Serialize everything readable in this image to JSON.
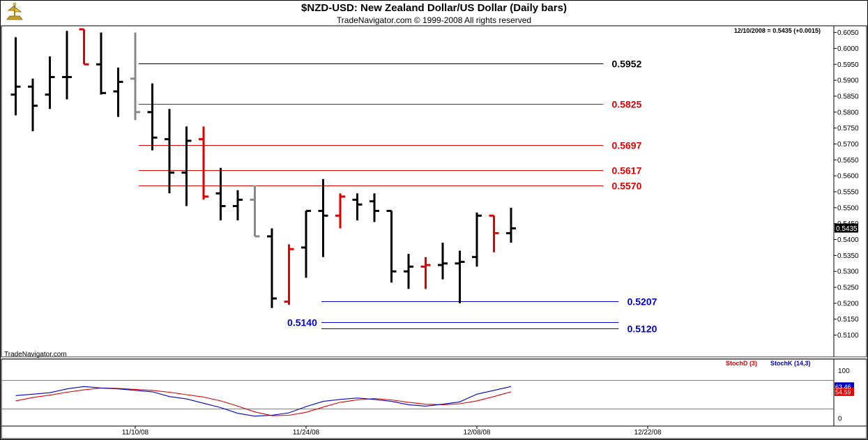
{
  "header": {
    "title": "$NZD-USD:  New Zealand Dollar/US Dollar  (Daily bars)",
    "subtitle": "TradeNavigator.com © 1999-2008 All rights reserved",
    "last_info": "12/10/2008 = 0.5435 (+0.0015)",
    "watermark": "TradeNavigator.com"
  },
  "colors": {
    "up": "#000000",
    "down": "#e00000",
    "neutral": "#888888",
    "resistance": "#e00000",
    "support": "#0000cc",
    "stochD": "#e00000",
    "stochK": "#0000cc"
  },
  "chart_data": [
    {
      "type": "ohlc",
      "title": "$NZD-USD:  New Zealand Dollar/US Dollar  (Daily bars)",
      "ylim": [
        0.5075,
        0.606
      ],
      "y_ticks": [
        "0.6050",
        "0.6000",
        "0.5950",
        "0.5900",
        "0.5850",
        "0.5800",
        "0.5750",
        "0.5700",
        "0.5650",
        "0.5600",
        "0.5550",
        "0.5500",
        "0.5450",
        "0.5400",
        "0.5350",
        "0.5300",
        "0.5250",
        "0.5200",
        "0.5150",
        "0.5100"
      ],
      "x_labels": [
        {
          "label": "11/10/08",
          "bar": 7
        },
        {
          "label": "11/24/08",
          "bar": 17
        },
        {
          "label": "12/08/08",
          "bar": 27
        },
        {
          "label": "12/22/08",
          "bar": 37
        }
      ],
      "last_value_label": "0.5435",
      "bars": [
        {
          "o": 0.5855,
          "h": 0.6035,
          "l": 0.579,
          "c": 0.588,
          "d": "up"
        },
        {
          "o": 0.588,
          "h": 0.5905,
          "l": 0.574,
          "c": 0.582,
          "d": "up"
        },
        {
          "o": 0.5855,
          "h": 0.5975,
          "l": 0.581,
          "c": 0.591,
          "d": "up"
        },
        {
          "o": 0.591,
          "h": 0.6055,
          "l": 0.584,
          "c": 0.591,
          "d": "up"
        },
        {
          "o": 0.606,
          "h": 0.606,
          "l": 0.595,
          "c": 0.595,
          "d": "down"
        },
        {
          "o": 0.595,
          "h": 0.605,
          "l": 0.5855,
          "c": 0.586,
          "d": "up"
        },
        {
          "o": 0.5865,
          "h": 0.594,
          "l": 0.5785,
          "c": 0.5895,
          "d": "up"
        },
        {
          "o": 0.5905,
          "h": 0.605,
          "l": 0.5775,
          "c": 0.58,
          "d": "neutral"
        },
        {
          "o": 0.58,
          "h": 0.589,
          "l": 0.568,
          "c": 0.572,
          "d": "up"
        },
        {
          "o": 0.5715,
          "h": 0.581,
          "l": 0.5545,
          "c": 0.561,
          "d": "up"
        },
        {
          "o": 0.561,
          "h": 0.5755,
          "l": 0.5505,
          "c": 0.571,
          "d": "up"
        },
        {
          "o": 0.5715,
          "h": 0.5755,
          "l": 0.5525,
          "c": 0.5535,
          "d": "down"
        },
        {
          "o": 0.5545,
          "h": 0.5625,
          "l": 0.546,
          "c": 0.5505,
          "d": "up"
        },
        {
          "o": 0.5505,
          "h": 0.5555,
          "l": 0.546,
          "c": 0.5525,
          "d": "up"
        },
        {
          "o": 0.5525,
          "h": 0.557,
          "l": 0.541,
          "c": 0.541,
          "d": "neutral"
        },
        {
          "o": 0.541,
          "h": 0.5435,
          "l": 0.5185,
          "c": 0.5215,
          "d": "up"
        },
        {
          "o": 0.5205,
          "h": 0.5385,
          "l": 0.5195,
          "c": 0.537,
          "d": "down"
        },
        {
          "o": 0.5375,
          "h": 0.549,
          "l": 0.528,
          "c": 0.549,
          "d": "up"
        },
        {
          "o": 0.549,
          "h": 0.559,
          "l": 0.5345,
          "c": 0.5475,
          "d": "up"
        },
        {
          "o": 0.5475,
          "h": 0.5545,
          "l": 0.5435,
          "c": 0.5535,
          "d": "down"
        },
        {
          "o": 0.5525,
          "h": 0.5545,
          "l": 0.546,
          "c": 0.551,
          "d": "up"
        },
        {
          "o": 0.552,
          "h": 0.5545,
          "l": 0.5455,
          "c": 0.549,
          "d": "up"
        },
        {
          "o": 0.549,
          "h": 0.549,
          "l": 0.5265,
          "c": 0.53,
          "d": "up"
        },
        {
          "o": 0.53,
          "h": 0.5355,
          "l": 0.5245,
          "c": 0.5315,
          "d": "up"
        },
        {
          "o": 0.5315,
          "h": 0.5345,
          "l": 0.5245,
          "c": 0.532,
          "d": "down"
        },
        {
          "o": 0.532,
          "h": 0.539,
          "l": 0.5275,
          "c": 0.5325,
          "d": "up"
        },
        {
          "o": 0.5325,
          "h": 0.5365,
          "l": 0.52,
          "c": 0.533,
          "d": "up"
        },
        {
          "o": 0.5345,
          "h": 0.5485,
          "l": 0.5315,
          "c": 0.5475,
          "d": "up"
        },
        {
          "o": 0.5475,
          "h": 0.5475,
          "l": 0.536,
          "c": 0.542,
          "d": "down"
        },
        {
          "o": 0.542,
          "h": 0.55,
          "l": 0.539,
          "c": 0.5435,
          "d": "up"
        }
      ],
      "levels": [
        {
          "value": 0.5952,
          "label": "0.5952",
          "color": "#000000",
          "from_bar": 7.2,
          "to_bar": 34.4,
          "label_bar": 34.9
        },
        {
          "value": 0.5825,
          "label": "0.5825",
          "color": "#e00000",
          "from_bar": 7.2,
          "to_bar": 34.4,
          "label_bar": 34.9
        },
        {
          "value": 0.5697,
          "label": "0.5697",
          "color": "#e00000",
          "from_bar": 7.2,
          "to_bar": 34.4,
          "label_bar": 34.9
        },
        {
          "value": 0.5617,
          "label": "0.5617",
          "color": "#e00000",
          "from_bar": 7.2,
          "to_bar": 34.4,
          "label_bar": 34.9
        },
        {
          "value": 0.557,
          "label": "0.5570",
          "color": "#e00000",
          "from_bar": 7.2,
          "to_bar": 34.4,
          "label_bar": 34.9
        },
        {
          "value": 0.5207,
          "label": "0.5207",
          "color": "#0000cc",
          "from_bar": 17.9,
          "to_bar": 35.3,
          "label_bar": 35.8
        },
        {
          "value": 0.514,
          "label": "0.5140",
          "color": "#0000cc",
          "from_bar": 17.9,
          "to_bar": 35.3,
          "label_bar": 15.9
        },
        {
          "value": 0.512,
          "label": "0.5120",
          "color": "#0000cc",
          "from_bar": 17.9,
          "to_bar": 35.3,
          "label_bar": 35.8
        }
      ]
    },
    {
      "type": "line",
      "title": "",
      "ylim": [
        -5,
        100
      ],
      "y_ticks": [
        "100",
        "0"
      ],
      "ref_lines": [
        80,
        20
      ],
      "legend": [
        "StochD (3)",
        "StochK (14,3)"
      ],
      "value_labels": [
        "63.46",
        "54.59"
      ],
      "series": [
        {
          "name": "StochD (3)",
          "color": "#e00000",
          "values": [
            36,
            43,
            48,
            54,
            59,
            63,
            62,
            60,
            58,
            54,
            49,
            44,
            36,
            25,
            13,
            5,
            6,
            12,
            23,
            33,
            38,
            41,
            38,
            33,
            29,
            28,
            30,
            36,
            45,
            55
          ]
        },
        {
          "name": "StochK (14,3)",
          "color": "#0000cc",
          "values": [
            47,
            50,
            53,
            61,
            66,
            63,
            61,
            58,
            55,
            45,
            40,
            31,
            22,
            10,
            4,
            6,
            11,
            24,
            35,
            39,
            42,
            39,
            35,
            28,
            25,
            29,
            34,
            50,
            58,
            66
          ]
        }
      ]
    }
  ]
}
